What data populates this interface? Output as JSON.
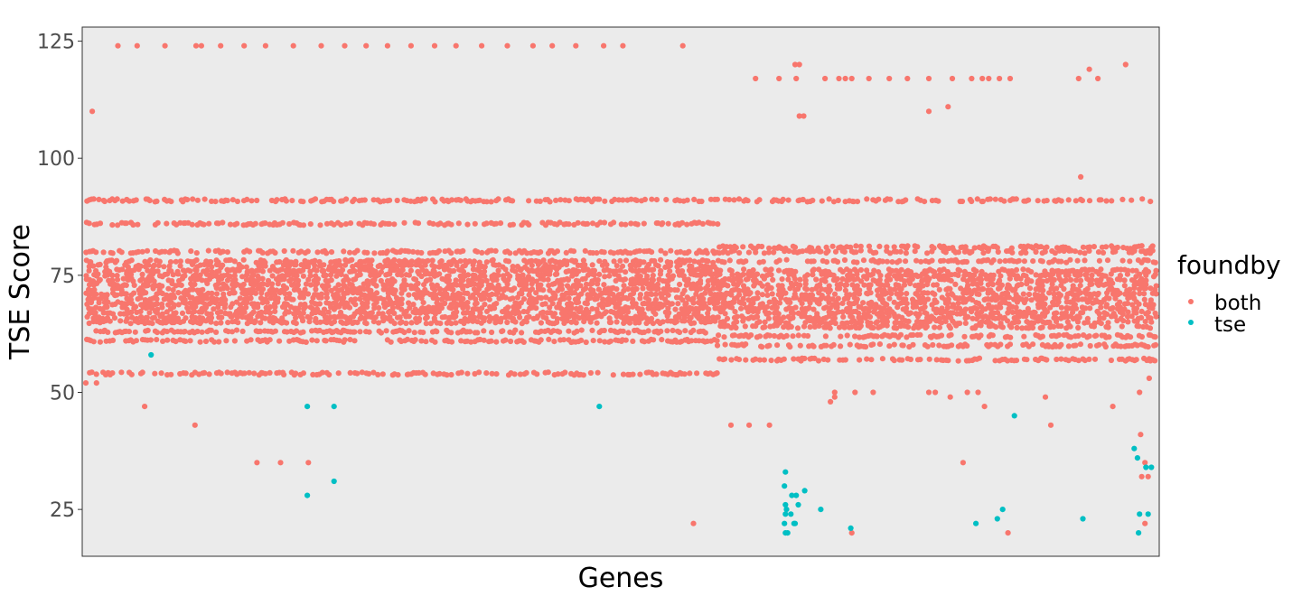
{
  "chart_data": {
    "type": "scatter",
    "title": "",
    "xlabel": "Genes",
    "ylabel": "TSE Score",
    "ylim": [
      15,
      128
    ],
    "xlim": [
      0,
      1000
    ],
    "yticks": [
      25,
      50,
      75,
      100,
      125
    ],
    "ytick_labels": [
      "25",
      "50",
      "75",
      "100",
      "125"
    ],
    "show_x_ticks": false,
    "grid": false,
    "panel_background": "#ebebeb",
    "legend": {
      "title": "foundby",
      "placement": "right"
    },
    "series": [
      {
        "name": "both",
        "color": "#F8766D",
        "clusters": [
          {
            "x_range": [
              0,
              590
            ],
            "levels": [
              54,
              61,
              63,
              65,
              66,
              67,
              68,
              69,
              70,
              71,
              72,
              73,
              74,
              75,
              76,
              77,
              78,
              80,
              86,
              91
            ],
            "density": 0.55
          },
          {
            "x_range": [
              590,
              1000
            ],
            "levels": [
              57,
              60,
              62,
              64,
              65,
              66,
              67,
              68,
              69,
              70,
              71,
              72,
              73,
              74,
              75,
              76,
              78,
              80,
              81,
              91
            ],
            "density": 0.5
          }
        ],
        "points": [
          [
            0,
            52
          ],
          [
            6,
            110
          ],
          [
            10,
            52
          ],
          [
            30,
            124
          ],
          [
            48,
            124
          ],
          [
            74,
            124
          ],
          [
            103,
            124
          ],
          [
            108,
            124
          ],
          [
            126,
            124
          ],
          [
            148,
            124
          ],
          [
            168,
            124
          ],
          [
            194,
            124
          ],
          [
            220,
            124
          ],
          [
            242,
            124
          ],
          [
            262,
            124
          ],
          [
            282,
            124
          ],
          [
            304,
            124
          ],
          [
            326,
            124
          ],
          [
            346,
            124
          ],
          [
            370,
            124
          ],
          [
            394,
            124
          ],
          [
            418,
            124
          ],
          [
            436,
            124
          ],
          [
            458,
            124
          ],
          [
            484,
            124
          ],
          [
            502,
            124
          ],
          [
            558,
            124
          ],
          [
            626,
            117
          ],
          [
            648,
            117
          ],
          [
            664,
            117
          ],
          [
            663,
            120
          ],
          [
            667,
            120
          ],
          [
            667,
            109
          ],
          [
            671,
            109
          ],
          [
            691,
            117
          ],
          [
            704,
            117
          ],
          [
            710,
            117
          ],
          [
            716,
            117
          ],
          [
            732,
            117
          ],
          [
            751,
            117
          ],
          [
            768,
            117
          ],
          [
            788,
            117
          ],
          [
            810,
            117
          ],
          [
            828,
            117
          ],
          [
            838,
            117
          ],
          [
            844,
            117
          ],
          [
            854,
            117
          ],
          [
            864,
            117
          ],
          [
            946,
            117
          ],
          [
            928,
            117
          ],
          [
            938,
            119
          ],
          [
            972,
            120
          ],
          [
            788,
            110
          ],
          [
            806,
            111
          ],
          [
            930,
            96
          ],
          [
            55,
            47
          ],
          [
            102,
            43
          ],
          [
            160,
            35
          ],
          [
            182,
            35
          ],
          [
            208,
            35
          ],
          [
            568,
            22
          ],
          [
            603,
            43
          ],
          [
            620,
            43
          ],
          [
            639,
            43
          ],
          [
            696,
            48
          ],
          [
            700,
            49
          ],
          [
            700,
            50
          ],
          [
            719,
            50
          ],
          [
            736,
            50
          ],
          [
            788,
            50
          ],
          [
            794,
            50
          ],
          [
            808,
            49
          ],
          [
            824,
            50
          ],
          [
            834,
            50
          ],
          [
            840,
            47
          ],
          [
            862,
            20
          ],
          [
            897,
            49
          ],
          [
            902,
            43
          ],
          [
            716,
            20
          ],
          [
            820,
            35
          ],
          [
            960,
            47
          ],
          [
            990,
            22
          ],
          [
            987,
            32
          ],
          [
            990,
            35
          ],
          [
            986,
            41
          ],
          [
            994,
            53
          ],
          [
            996,
            57
          ],
          [
            993,
            32
          ],
          [
            982,
            57
          ],
          [
            985,
            50
          ],
          [
            996,
            65
          ],
          [
            980,
            70
          ]
        ]
      },
      {
        "name": "tse",
        "color": "#00BFC4",
        "points": [
          [
            61,
            58
          ],
          [
            207,
            47
          ],
          [
            232,
            47
          ],
          [
            207,
            28
          ],
          [
            232,
            31
          ],
          [
            480,
            47
          ],
          [
            654,
            20
          ],
          [
            656,
            20
          ],
          [
            653,
            22
          ],
          [
            654,
            24
          ],
          [
            655,
            25
          ],
          [
            654,
            26
          ],
          [
            653,
            30
          ],
          [
            654,
            33
          ],
          [
            660,
            28
          ],
          [
            664,
            28
          ],
          [
            659,
            24
          ],
          [
            663,
            22
          ],
          [
            662,
            22
          ],
          [
            666,
            26
          ],
          [
            672,
            29
          ],
          [
            687,
            25
          ],
          [
            715,
            21
          ],
          [
            832,
            22
          ],
          [
            852,
            23
          ],
          [
            868,
            45
          ],
          [
            857,
            25
          ],
          [
            932,
            23
          ],
          [
            980,
            38
          ],
          [
            983,
            36
          ],
          [
            985,
            24
          ],
          [
            984,
            20
          ],
          [
            991,
            34
          ],
          [
            996,
            34
          ],
          [
            993,
            24
          ]
        ]
      }
    ]
  }
}
